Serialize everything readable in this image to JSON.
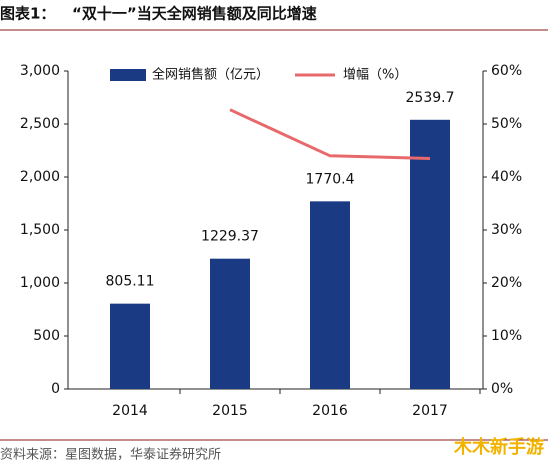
{
  "chart_data": {
    "type": "bar",
    "title_label": "图表1：",
    "title": "“双十一”当天全网销售额及同比增速",
    "source": "资料来源：星图数据，华泰证券研究所",
    "watermark": "木木新手游",
    "categories": [
      "2014",
      "2015",
      "2016",
      "2017"
    ],
    "series": [
      {
        "name": "全网销售额（亿元）",
        "type": "bar",
        "color": "#1b3a84",
        "values": [
          805.11,
          1229.37,
          1770.4,
          2539.7
        ]
      },
      {
        "name": "增幅（%）",
        "type": "line",
        "axis": "y2",
        "color": "#e8696b",
        "values": [
          null,
          52.7,
          44,
          43.5
        ]
      }
    ],
    "ylim": [
      0,
      3000
    ],
    "yticks": [
      0,
      500,
      {
        "value": 1000,
        "label": "1,000"
      },
      {
        "value": 1500,
        "label": "1,500"
      },
      {
        "value": 2000,
        "label": "2,000"
      },
      {
        "value": 2500,
        "label": "2,500"
      },
      {
        "value": 3000,
        "label": "3,000"
      }
    ],
    "y2lim": [
      0,
      60
    ],
    "y2ticks": [
      {
        "value": 0,
        "label": "0%"
      },
      {
        "value": 10,
        "label": "10%"
      },
      {
        "value": 20,
        "label": "20%"
      },
      {
        "value": 30,
        "label": "30%"
      },
      {
        "value": 40,
        "label": "40%"
      },
      {
        "value": 50,
        "label": "50%"
      },
      {
        "value": 60,
        "label": "60%"
      }
    ],
    "grid": false
  }
}
